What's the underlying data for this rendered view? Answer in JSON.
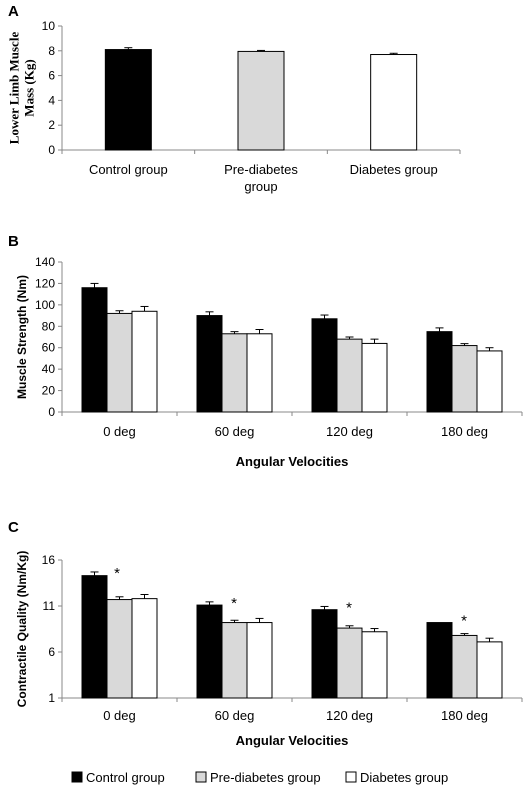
{
  "series_styles": [
    {
      "fill": "#000000",
      "stroke": "#000000"
    },
    {
      "fill": "#d9d9d9",
      "stroke": "#000000"
    },
    {
      "fill": "#ffffff",
      "stroke": "#000000"
    }
  ],
  "legend": [
    {
      "label": "Control group"
    },
    {
      "label": "Pre-diabetes group"
    },
    {
      "label": "Diabetes group"
    }
  ],
  "chart_data": [
    {
      "panel": "A",
      "type": "bar",
      "ylabel": [
        "Lower Limb Muscle",
        "Mass (Kg)"
      ],
      "xlabel": "",
      "ylim": [
        0,
        10
      ],
      "yticks": [
        0,
        2,
        4,
        6,
        8,
        10
      ],
      "categories": [
        "Control group",
        "Pre-diabetes group",
        "Diabetes group"
      ],
      "category_lines": [
        [
          "Control group"
        ],
        [
          "Pre-diabetes",
          "group"
        ],
        [
          "Diabetes group"
        ]
      ],
      "values": [
        8.1,
        7.95,
        7.7
      ],
      "errors": [
        0.15,
        0.08,
        0.1
      ]
    },
    {
      "panel": "B",
      "type": "bar",
      "ylabel": [
        "Muscle Strength (Nm)"
      ],
      "xlabel": "Angular Velocities",
      "ylim": [
        0,
        140
      ],
      "yticks": [
        0,
        20,
        40,
        60,
        80,
        100,
        120,
        140
      ],
      "categories": [
        "0 deg",
        "60 deg",
        "120 deg",
        "180 deg"
      ],
      "series": [
        {
          "name": "Control group",
          "values": [
            116,
            90,
            87,
            75
          ],
          "errors": [
            4,
            3.5,
            3.5,
            3.5
          ]
        },
        {
          "name": "Pre-diabetes group",
          "values": [
            92,
            73,
            68,
            62
          ],
          "errors": [
            2.5,
            2,
            2,
            1.8
          ]
        },
        {
          "name": "Diabetes group",
          "values": [
            94,
            73,
            64,
            57
          ],
          "errors": [
            4.5,
            4,
            4,
            3
          ]
        }
      ]
    },
    {
      "panel": "C",
      "type": "bar",
      "ylabel": [
        "Contractile Quality (Nm/Kg)"
      ],
      "xlabel": "Angular Velocities",
      "ylim": [
        1,
        16
      ],
      "yticks": [
        1,
        6,
        11,
        16
      ],
      "categories": [
        "0 deg",
        "60 deg",
        "120 deg",
        "180 deg"
      ],
      "series": [
        {
          "name": "Control group",
          "values": [
            14.3,
            11.1,
            10.6,
            9.2
          ],
          "errors": [
            0.4,
            0.35,
            0.35,
            0
          ]
        },
        {
          "name": "Pre-diabetes group",
          "values": [
            11.7,
            9.2,
            8.6,
            7.8
          ],
          "errors": [
            0.3,
            0.25,
            0.25,
            0.2
          ]
        },
        {
          "name": "Diabetes group",
          "values": [
            11.8,
            9.2,
            8.2,
            7.1
          ],
          "errors": [
            0.45,
            0.45,
            0.35,
            0.4
          ]
        }
      ],
      "annotations": [
        {
          "category": "0 deg",
          "text": "*"
        },
        {
          "category": "60 deg",
          "text": "*"
        },
        {
          "category": "120 deg",
          "text": "*"
        },
        {
          "category": "180 deg",
          "text": "*"
        }
      ]
    }
  ]
}
